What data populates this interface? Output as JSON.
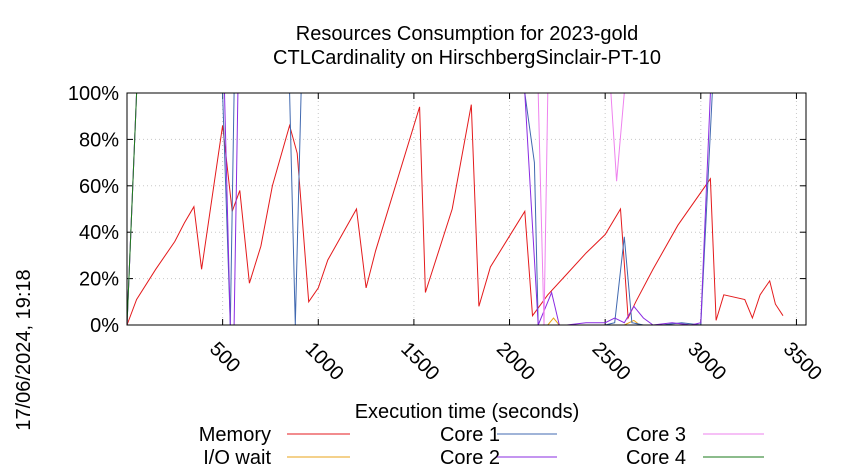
{
  "chart_data": {
    "type": "line",
    "title": "Resources Consumption for 2023-gold",
    "subtitle": "CTLCardinality on HirschbergSinclair-PT-10",
    "xlabel": "Execution time (seconds)",
    "ylabel": "",
    "side_label": "17/06/2024, 19:18",
    "xlim": [
      0,
      3550
    ],
    "ylim": [
      0,
      100
    ],
    "x_ticks": [
      500,
      1000,
      1500,
      2000,
      2500,
      3000,
      3500
    ],
    "x_tick_labels": [
      "500",
      "1000",
      "1500",
      "2000",
      "2500",
      "3000",
      "3500"
    ],
    "y_ticks": [
      0,
      20,
      40,
      60,
      80,
      100
    ],
    "y_tick_labels": [
      "0%",
      "20%",
      "40%",
      "60%",
      "80%",
      "100%"
    ],
    "grid": true,
    "legend_position": "bottom",
    "series": [
      {
        "name": "Memory",
        "color": "#e41a1c",
        "points": [
          [
            0,
            0
          ],
          [
            50,
            11
          ],
          [
            150,
            24
          ],
          [
            250,
            36
          ],
          [
            300,
            44
          ],
          [
            350,
            51
          ],
          [
            390,
            24
          ],
          [
            500,
            86
          ],
          [
            550,
            49
          ],
          [
            590,
            58
          ],
          [
            640,
            18
          ],
          [
            700,
            34
          ],
          [
            760,
            60
          ],
          [
            850,
            86
          ],
          [
            890,
            74
          ],
          [
            950,
            10
          ],
          [
            1000,
            16
          ],
          [
            1050,
            28
          ],
          [
            1200,
            50
          ],
          [
            1250,
            16
          ],
          [
            1300,
            32
          ],
          [
            1530,
            94
          ],
          [
            1560,
            14
          ],
          [
            1700,
            50
          ],
          [
            1800,
            95
          ],
          [
            1840,
            8
          ],
          [
            1900,
            25
          ],
          [
            2080,
            49
          ],
          [
            2120,
            4
          ],
          [
            2200,
            13
          ],
          [
            2300,
            22
          ],
          [
            2400,
            31
          ],
          [
            2500,
            39
          ],
          [
            2580,
            50
          ],
          [
            2620,
            3
          ],
          [
            2660,
            10
          ],
          [
            2750,
            24
          ],
          [
            2880,
            43
          ],
          [
            3050,
            63
          ],
          [
            3080,
            2
          ],
          [
            3120,
            13
          ],
          [
            3230,
            11
          ],
          [
            3270,
            3
          ],
          [
            3310,
            13
          ],
          [
            3360,
            19
          ],
          [
            3390,
            9
          ],
          [
            3430,
            4
          ]
        ]
      },
      {
        "name": "I/O wait",
        "color": "#e8a317",
        "points": [
          [
            2100,
            0
          ],
          [
            2200,
            0
          ],
          [
            2230,
            3
          ],
          [
            2260,
            0
          ],
          [
            2600,
            0
          ],
          [
            2650,
            2
          ],
          [
            2680,
            0
          ],
          [
            3430,
            0
          ]
        ]
      },
      {
        "name": "Core 1",
        "color": "#4169b0",
        "points": [
          [
            0,
            0
          ],
          [
            50,
            100
          ],
          [
            490,
            100
          ],
          [
            500,
            100
          ],
          [
            540,
            0
          ],
          [
            560,
            100
          ],
          [
            810,
            100
          ],
          [
            850,
            100
          ],
          [
            880,
            0
          ],
          [
            910,
            100
          ],
          [
            2080,
            100
          ],
          [
            2130,
            70
          ],
          [
            2150,
            0
          ],
          [
            2200,
            0
          ],
          [
            2500,
            0
          ],
          [
            2550,
            1
          ],
          [
            2600,
            38
          ],
          [
            2640,
            1
          ],
          [
            2700,
            0
          ],
          [
            2800,
            0
          ],
          [
            2900,
            1
          ],
          [
            3000,
            0
          ],
          [
            3060,
            100
          ],
          [
            3430,
            100
          ]
        ]
      },
      {
        "name": "Core 2",
        "color": "#8a2be2",
        "points": [
          [
            0,
            0
          ],
          [
            50,
            100
          ],
          [
            490,
            100
          ],
          [
            510,
            100
          ],
          [
            540,
            0
          ],
          [
            560,
            0
          ],
          [
            580,
            100
          ],
          [
            820,
            100
          ],
          [
            850,
            100
          ],
          [
            1000,
            100
          ],
          [
            2080,
            100
          ],
          [
            2150,
            0
          ],
          [
            2200,
            10
          ],
          [
            2220,
            14
          ],
          [
            2260,
            0
          ],
          [
            2300,
            0
          ],
          [
            2400,
            1
          ],
          [
            2500,
            1
          ],
          [
            2550,
            3
          ],
          [
            2600,
            1
          ],
          [
            2650,
            8
          ],
          [
            2700,
            3
          ],
          [
            2750,
            0
          ],
          [
            2850,
            1
          ],
          [
            2950,
            0
          ],
          [
            3000,
            1
          ],
          [
            3050,
            100
          ],
          [
            3430,
            100
          ]
        ]
      },
      {
        "name": "Core 3",
        "color": "#ee82ee",
        "points": [
          [
            0,
            0
          ],
          [
            50,
            100
          ],
          [
            2150,
            100
          ],
          [
            2180,
            0
          ],
          [
            2200,
            100
          ],
          [
            2500,
            100
          ],
          [
            2530,
            100
          ],
          [
            2560,
            62
          ],
          [
            2600,
            100
          ],
          [
            3430,
            100
          ]
        ]
      },
      {
        "name": "Core 4",
        "color": "#1a7a1a",
        "points": [
          [
            0,
            0
          ],
          [
            50,
            100
          ],
          [
            3430,
            100
          ]
        ]
      }
    ]
  }
}
